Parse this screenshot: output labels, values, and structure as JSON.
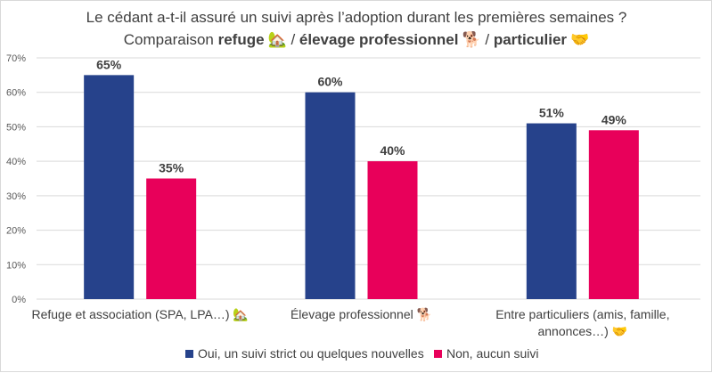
{
  "chart_data": {
    "type": "bar",
    "title": {
      "line1": "Le cédant a-t-il assuré un suivi après l’adoption durant les premières semaines ?",
      "line2_prefix": "Comparaison ",
      "line2_refuge": "refuge",
      "line2_refuge_emoji": "🏡",
      "line2_sep1": " / ",
      "line2_elevage": "élevage professionnel",
      "line2_elevage_emoji": "🐕",
      "line2_sep2": " / ",
      "line2_particulier": "particulier",
      "line2_particulier_emoji": "🤝"
    },
    "categories": [
      [
        "Refuge et association (SPA, LPA…) 🏡"
      ],
      [
        "Élevage professionnel 🐕"
      ],
      [
        "Entre particuliers (amis, famille,",
        "annonces…) 🤝"
      ]
    ],
    "series": [
      {
        "name": "Oui, un suivi strict ou quelques nouvelles",
        "color": "#26428b",
        "values": [
          65,
          60,
          51
        ]
      },
      {
        "name": "Non, aucun suivi",
        "color": "#e8005a",
        "values": [
          35,
          40,
          49
        ]
      }
    ],
    "data_labels": [
      [
        "65%",
        "60%",
        "51%"
      ],
      [
        "35%",
        "40%",
        "49%"
      ]
    ],
    "ylim": [
      0,
      70
    ],
    "yticks": [
      "0%",
      "10%",
      "20%",
      "30%",
      "40%",
      "50%",
      "60%",
      "70%"
    ],
    "ytick_values": [
      0,
      10,
      20,
      30,
      40,
      50,
      60,
      70
    ],
    "xlabel": "",
    "ylabel": "",
    "grid": true,
    "legend_position": "bottom"
  }
}
